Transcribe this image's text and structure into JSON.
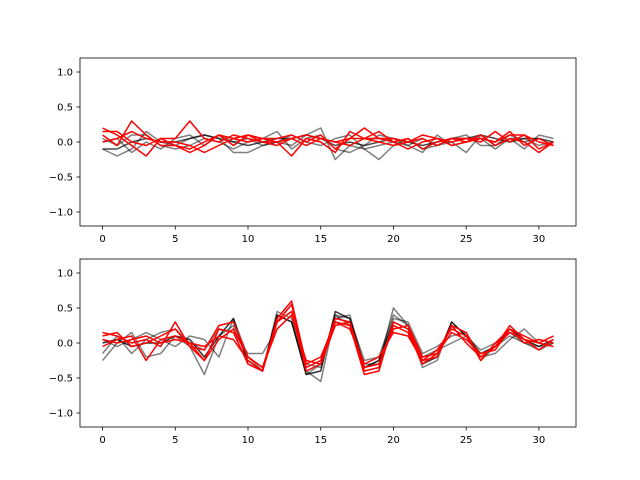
{
  "chart_data": [
    {
      "type": "line",
      "title": "",
      "xlabel": "",
      "ylabel": "",
      "xlim": [
        -1.55,
        32.55
      ],
      "ylim": [
        -1.2,
        1.2
      ],
      "xticks": [
        0,
        5,
        10,
        15,
        20,
        25,
        30
      ],
      "yticks": [
        -1.0,
        -0.5,
        0.0,
        0.5,
        1.0
      ],
      "xtick_labels": [
        "0",
        "5",
        "10",
        "15",
        "20",
        "25",
        "30"
      ],
      "ytick_labels": [
        "−1.0",
        "−0.5",
        "0.0",
        "0.5",
        "1.0"
      ],
      "grid": false,
      "x": [
        0,
        1,
        2,
        3,
        4,
        5,
        6,
        7,
        8,
        9,
        10,
        11,
        12,
        13,
        14,
        15,
        16,
        17,
        18,
        19,
        20,
        21,
        22,
        23,
        24,
        25,
        26,
        27,
        28,
        29,
        30,
        31
      ],
      "series": [
        {
          "color": "#000000",
          "opacity": 0.5,
          "values": [
            -0.1,
            -0.2,
            -0.1,
            0.15,
            0.0,
            -0.05,
            0.05,
            0.1,
            0.05,
            -0.15,
            -0.15,
            -0.05,
            0.0,
            -0.05,
            0.1,
            0.2,
            -0.25,
            -0.05,
            -0.1,
            -0.25,
            -0.05,
            0.05,
            -0.1,
            -0.05,
            0.0,
            -0.15,
            0.1,
            -0.05,
            0.05,
            -0.1,
            0.1,
            0.05
          ]
        },
        {
          "color": "#000000",
          "opacity": 0.5,
          "values": [
            0.05,
            -0.05,
            0.1,
            0.1,
            -0.05,
            -0.1,
            -0.05,
            0.05,
            0.0,
            -0.1,
            0.0,
            0.05,
            0.15,
            -0.1,
            0.05,
            0.1,
            -0.1,
            -0.15,
            -0.05,
            0.1,
            0.05,
            -0.05,
            -0.15,
            0.1,
            -0.05,
            0.0,
            0.05,
            -0.1,
            0.05,
            0.05,
            -0.05,
            0.0
          ]
        },
        {
          "color": "#000000",
          "opacity": 0.5,
          "values": [
            0.0,
            0.05,
            -0.15,
            0.0,
            -0.1,
            0.05,
            0.1,
            -0.05,
            0.1,
            0.0,
            0.05,
            -0.05,
            0.0,
            0.1,
            0.0,
            -0.05,
            0.05,
            0.1,
            -0.1,
            -0.05,
            0.0,
            -0.05,
            0.05,
            -0.05,
            0.05,
            0.1,
            -0.05,
            -0.05,
            0.1,
            0.0,
            0.05,
            -0.05
          ]
        },
        {
          "color": "#000000",
          "opacity": 0.7,
          "values": [
            -0.1,
            -0.1,
            0.0,
            0.05,
            0.0,
            0.0,
            0.05,
            0.1,
            0.05,
            0.0,
            -0.05,
            0.0,
            0.05,
            0.05,
            0.1,
            0.05,
            -0.05,
            0.0,
            -0.05,
            0.0,
            0.05,
            0.0,
            -0.05,
            0.0,
            0.05,
            0.05,
            0.1,
            0.05,
            0.0,
            0.05,
            0.05,
            0.0
          ]
        },
        {
          "color": "#ff0000",
          "opacity": 1.0,
          "values": [
            0.2,
            0.1,
            -0.05,
            -0.2,
            0.05,
            0.05,
            0.3,
            0.05,
            0.0,
            0.1,
            0.05,
            0.0,
            0.0,
            -0.2,
            0.05,
            0.0,
            -0.15,
            0.15,
            0.05,
            0.15,
            0.0,
            -0.1,
            0.0,
            0.05,
            -0.05,
            0.0,
            0.05,
            0.0,
            0.15,
            -0.05,
            0.05,
            -0.05
          ]
        },
        {
          "color": "#ff0000",
          "opacity": 1.0,
          "values": [
            0.1,
            -0.05,
            0.3,
            0.1,
            -0.05,
            -0.05,
            -0.1,
            0.0,
            0.1,
            0.05,
            0.1,
            0.05,
            0.05,
            0.1,
            0.0,
            0.1,
            -0.1,
            0.05,
            0.2,
            0.05,
            0.05,
            0.0,
            0.05,
            -0.05,
            0.05,
            0.05,
            0.0,
            0.15,
            0.0,
            0.1,
            -0.1,
            0.0
          ]
        },
        {
          "color": "#ff0000",
          "opacity": 1.0,
          "values": [
            0.15,
            0.15,
            0.0,
            -0.05,
            0.05,
            -0.05,
            -0.15,
            -0.05,
            0.1,
            -0.05,
            0.1,
            0.0,
            -0.05,
            0.05,
            0.1,
            0.05,
            0.0,
            0.05,
            0.05,
            0.05,
            0.0,
            0.05,
            -0.1,
            0.0,
            0.05,
            0.0,
            0.1,
            -0.05,
            0.05,
            0.0,
            -0.15,
            0.0
          ]
        },
        {
          "color": "#ff0000",
          "opacity": 1.0,
          "values": [
            0.0,
            0.05,
            0.15,
            0.05,
            0.0,
            0.0,
            -0.05,
            -0.15,
            -0.05,
            0.05,
            0.0,
            0.05,
            0.0,
            0.05,
            -0.05,
            0.05,
            0.0,
            -0.05,
            0.05,
            0.0,
            -0.05,
            0.0,
            0.1,
            0.05,
            0.0,
            0.05,
            0.05,
            0.0,
            0.1,
            0.1,
            0.0,
            -0.05
          ]
        }
      ]
    },
    {
      "type": "line",
      "title": "",
      "xlabel": "",
      "ylabel": "",
      "xlim": [
        -1.55,
        32.55
      ],
      "ylim": [
        -1.2,
        1.2
      ],
      "xticks": [
        0,
        5,
        10,
        15,
        20,
        25,
        30
      ],
      "yticks": [
        -1.0,
        -0.5,
        0.0,
        0.5,
        1.0
      ],
      "xtick_labels": [
        "0",
        "5",
        "10",
        "15",
        "20",
        "25",
        "30"
      ],
      "ytick_labels": [
        "−1.0",
        "−0.5",
        "0.0",
        "0.5",
        "1.0"
      ],
      "grid": false,
      "x": [
        0,
        1,
        2,
        3,
        4,
        5,
        6,
        7,
        8,
        9,
        10,
        11,
        12,
        13,
        14,
        15,
        16,
        17,
        18,
        19,
        20,
        21,
        22,
        23,
        24,
        25,
        26,
        27,
        28,
        29,
        30,
        31
      ],
      "series": [
        {
          "color": "#000000",
          "opacity": 0.5,
          "values": [
            -0.25,
            0.0,
            0.15,
            -0.2,
            -0.15,
            0.1,
            -0.05,
            -0.45,
            0.1,
            0.25,
            -0.25,
            -0.4,
            0.4,
            0.3,
            -0.4,
            -0.55,
            0.4,
            0.25,
            -0.3,
            -0.3,
            0.5,
            0.25,
            -0.2,
            -0.1,
            0.0,
            0.1,
            -0.1,
            0.0,
            0.15,
            0.0,
            -0.1,
            0.0
          ]
        },
        {
          "color": "#000000",
          "opacity": 0.5,
          "values": [
            -0.15,
            0.1,
            -0.15,
            0.05,
            0.15,
            0.2,
            0.0,
            -0.1,
            0.2,
            0.15,
            -0.15,
            -0.15,
            0.2,
            0.4,
            -0.3,
            -0.35,
            0.35,
            0.4,
            -0.35,
            -0.25,
            0.35,
            0.3,
            -0.15,
            -0.05,
            0.1,
            0.15,
            -0.2,
            -0.15,
            0.05,
            0.2,
            0.0,
            0.1
          ]
        },
        {
          "color": "#000000",
          "opacity": 0.5,
          "values": [
            0.05,
            -0.05,
            0.05,
            0.15,
            0.05,
            -0.05,
            0.1,
            0.05,
            -0.2,
            0.35,
            -0.2,
            -0.4,
            0.45,
            0.35,
            -0.45,
            -0.3,
            0.4,
            0.35,
            -0.25,
            -0.2,
            0.4,
            0.25,
            -0.35,
            -0.25,
            0.3,
            0.1,
            -0.25,
            -0.05,
            0.1,
            0.0,
            -0.05,
            0.0
          ]
        },
        {
          "color": "#000000",
          "opacity": 0.8,
          "values": [
            0.0,
            0.05,
            -0.05,
            0.0,
            0.0,
            0.1,
            0.05,
            -0.2,
            0.1,
            0.35,
            -0.3,
            -0.4,
            0.4,
            0.3,
            -0.45,
            -0.4,
            0.45,
            0.35,
            -0.35,
            -0.25,
            0.3,
            0.2,
            -0.3,
            -0.2,
            0.3,
            0.1,
            -0.15,
            -0.05,
            0.2,
            0.05,
            -0.05,
            0.05
          ]
        },
        {
          "color": "#ff0000",
          "opacity": 1.0,
          "values": [
            0.15,
            0.1,
            0.0,
            0.05,
            -0.05,
            0.3,
            -0.05,
            -0.25,
            0.2,
            0.15,
            -0.3,
            -0.4,
            0.35,
            0.6,
            -0.3,
            -0.2,
            0.3,
            0.25,
            -0.45,
            -0.4,
            0.3,
            0.2,
            -0.25,
            -0.1,
            0.2,
            0.1,
            -0.2,
            -0.05,
            0.25,
            0.05,
            0.0,
            -0.05
          ]
        },
        {
          "color": "#ff0000",
          "opacity": 1.0,
          "values": [
            0.1,
            0.15,
            -0.05,
            0.0,
            0.1,
            0.2,
            -0.05,
            -0.1,
            0.25,
            0.3,
            -0.2,
            -0.35,
            0.3,
            0.55,
            -0.35,
            -0.25,
            0.35,
            0.3,
            -0.35,
            -0.3,
            0.2,
            0.25,
            -0.2,
            -0.15,
            0.25,
            0.15,
            -0.25,
            0.0,
            0.2,
            0.1,
            0.0,
            0.1
          ]
        },
        {
          "color": "#ff0000",
          "opacity": 1.0,
          "values": [
            0.05,
            0.0,
            0.05,
            0.1,
            0.0,
            0.05,
            0.0,
            -0.05,
            0.1,
            0.05,
            -0.25,
            -0.4,
            0.3,
            0.45,
            -0.4,
            -0.3,
            0.25,
            0.3,
            -0.4,
            -0.35,
            0.25,
            0.15,
            -0.3,
            -0.15,
            0.15,
            0.05,
            -0.15,
            -0.1,
            0.2,
            0.0,
            0.05,
            0.0
          ]
        },
        {
          "color": "#ff0000",
          "opacity": 1.0,
          "values": [
            -0.05,
            0.05,
            0.1,
            -0.25,
            0.05,
            0.1,
            0.0,
            -0.25,
            0.05,
            0.2,
            -0.2,
            -0.35,
            0.2,
            0.4,
            -0.25,
            -0.3,
            0.3,
            0.2,
            -0.3,
            -0.2,
            0.15,
            0.1,
            -0.25,
            -0.2,
            0.25,
            0.0,
            -0.2,
            -0.05,
            0.15,
            0.05,
            -0.1,
            0.05
          ]
        }
      ]
    }
  ]
}
